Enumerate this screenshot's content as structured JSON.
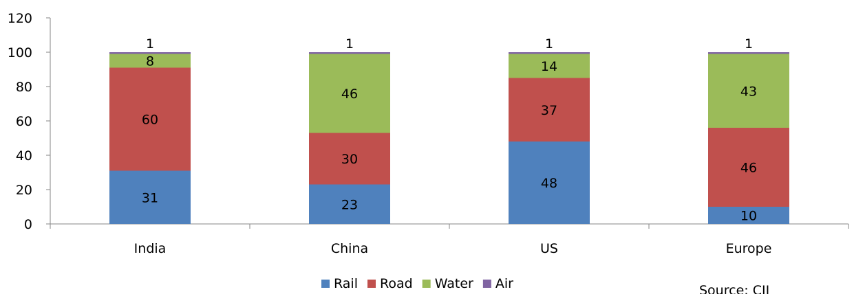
{
  "chart_data": {
    "type": "bar",
    "stacked": true,
    "categories": [
      "India",
      "China",
      "US",
      "Europe"
    ],
    "series": [
      {
        "name": "Rail",
        "values": [
          31,
          23,
          48,
          10
        ],
        "color": "#4F81BD"
      },
      {
        "name": "Road",
        "values": [
          60,
          30,
          37,
          46
        ],
        "color": "#C0504D"
      },
      {
        "name": "Water",
        "values": [
          8,
          46,
          14,
          43
        ],
        "color": "#9BBB59"
      },
      {
        "name": "Air",
        "values": [
          1,
          1,
          1,
          1
        ],
        "color": "#8064A2"
      }
    ],
    "title": "",
    "xlabel": "",
    "ylabel": "",
    "ylim": [
      0,
      120
    ],
    "yticks": [
      0,
      20,
      40,
      60,
      80,
      100,
      120
    ],
    "grid": false,
    "legend_position": "bottom",
    "data_labels": true
  },
  "source_note": "Source: CII"
}
